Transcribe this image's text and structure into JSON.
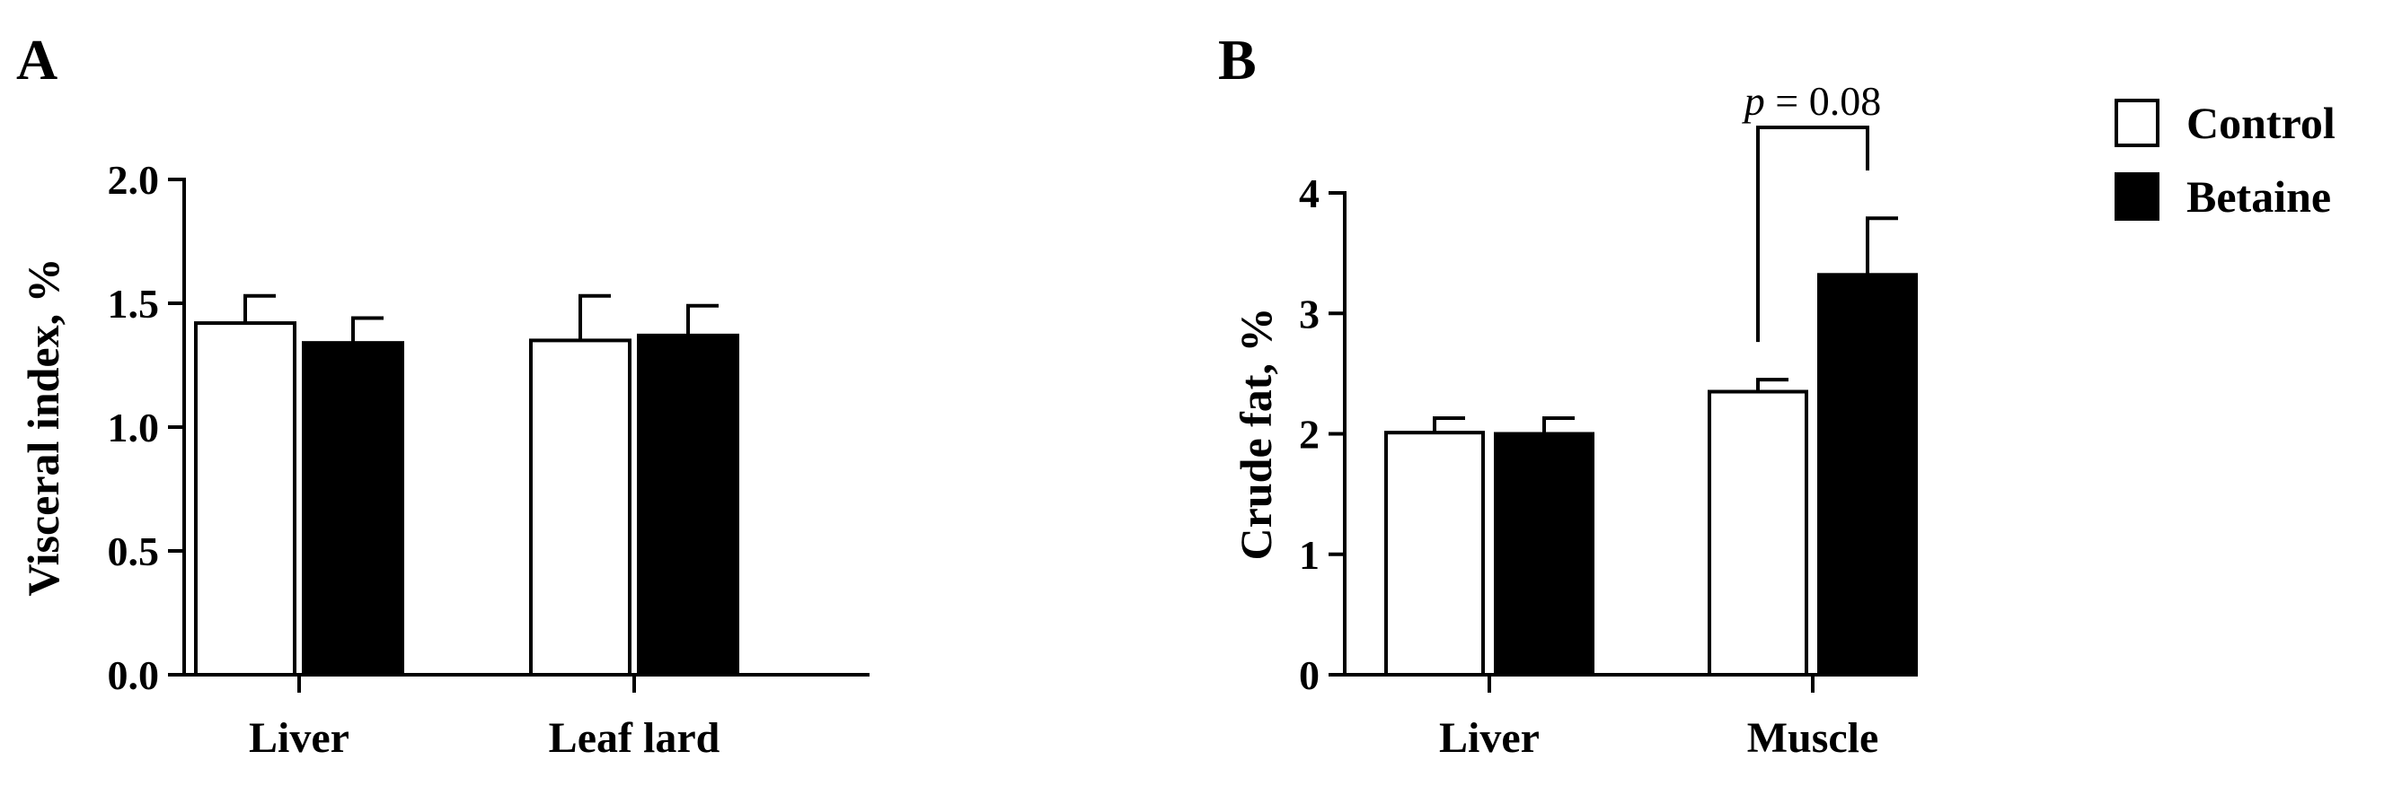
{
  "legend": {
    "placement": "top-right",
    "items": [
      {
        "label": "Control",
        "color": "#ffffff"
      },
      {
        "label": "Betaine",
        "color": "#000000"
      }
    ]
  },
  "chart_data": [
    {
      "panel": "A",
      "type": "bar",
      "title": "",
      "xlabel": "",
      "ylabel": "Visceral index, %",
      "ylim": [
        0,
        2.0
      ],
      "yticks": [
        "0.0",
        "0.5",
        "1.0",
        "1.5",
        "2.0"
      ],
      "categories": [
        "Liver",
        "Leaf lard"
      ],
      "series": [
        {
          "name": "Control",
          "color": "#ffffff",
          "values": [
            1.42,
            1.35
          ],
          "errors": [
            0.11,
            0.18
          ]
        },
        {
          "name": "Betaine",
          "color": "#000000",
          "values": [
            1.34,
            1.37
          ],
          "errors": [
            0.1,
            0.12
          ]
        }
      ],
      "grid": false
    },
    {
      "panel": "B",
      "type": "bar",
      "title": "",
      "xlabel": "",
      "ylabel": "Crude fat, %",
      "ylim": [
        0,
        4
      ],
      "yticks": [
        "0",
        "1",
        "2",
        "3",
        "4"
      ],
      "categories": [
        "Liver",
        "Muscle"
      ],
      "series": [
        {
          "name": "Control",
          "color": "#ffffff",
          "values": [
            2.01,
            2.35
          ],
          "errors": [
            0.12,
            0.1
          ]
        },
        {
          "name": "Betaine",
          "color": "#000000",
          "values": [
            2.0,
            3.32
          ],
          "errors": [
            0.13,
            0.47
          ]
        }
      ],
      "annotation": {
        "p_symbol": "p",
        "text": "= 0.08",
        "category": "Muscle"
      },
      "grid": false
    }
  ]
}
